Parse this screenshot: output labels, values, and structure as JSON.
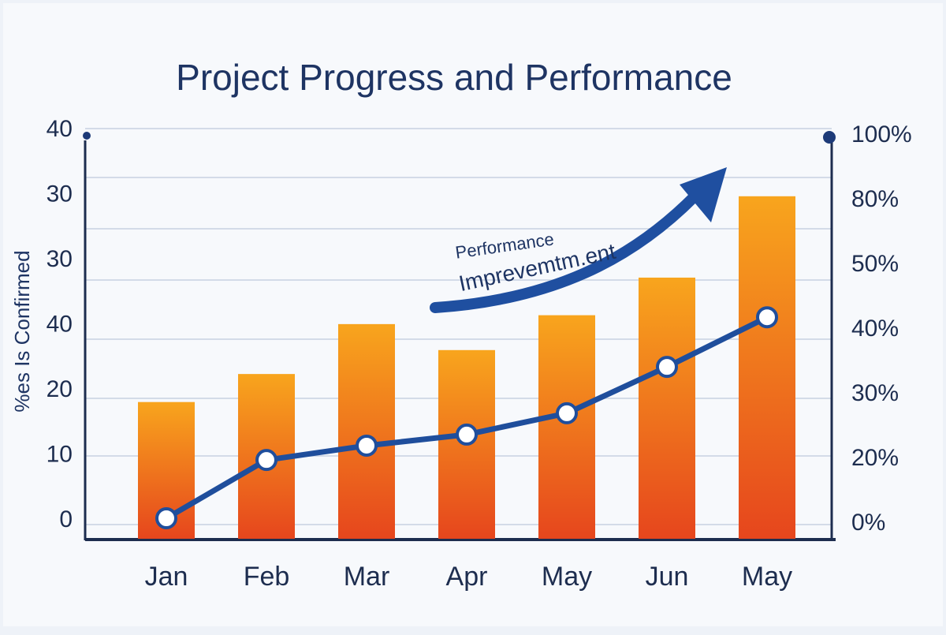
{
  "chart_data": {
    "type": "bar-line",
    "title": "Project Progress and Performance",
    "y_axis_title": "%es Is Confirmed",
    "annotation": [
      "Performance",
      "Imprevemtm.ent"
    ],
    "categories": [
      "Jan",
      "Feb",
      "Mar",
      "Apr",
      "May",
      "Jun",
      "May"
    ],
    "y_axis_labels": [
      "40",
      "30",
      "30",
      "40",
      "20",
      "10",
      "0"
    ],
    "y2_axis_labels": [
      "100%",
      "80%",
      "50%",
      "40%",
      "30%",
      "20%",
      "0%"
    ],
    "ylim": [
      0,
      60
    ],
    "y2lim": [
      0,
      100
    ],
    "series": [
      {
        "type": "bar",
        "values": [
          20,
          24.1,
          31.4,
          27.6,
          32.7,
          38.2,
          50.1
        ]
      },
      {
        "type": "line",
        "axis": "y2",
        "color": "#1f4e9c",
        "values": [
          5,
          19.2,
          22.7,
          25.4,
          30.6,
          41.9,
          54
        ]
      }
    ]
  }
}
